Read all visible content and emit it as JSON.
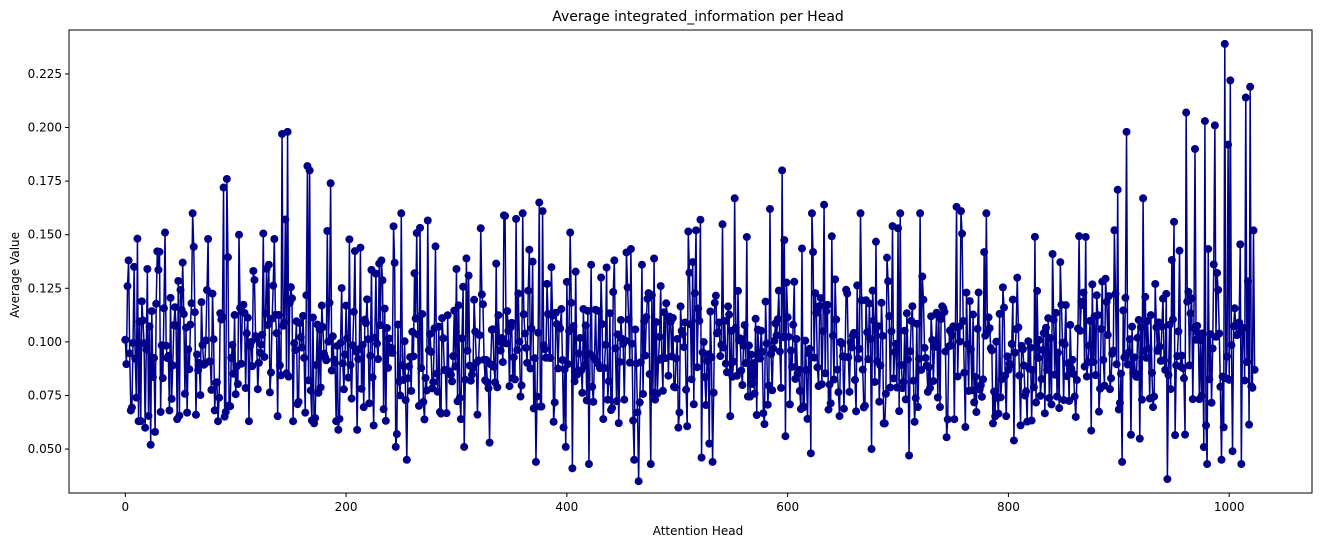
{
  "chart_data": {
    "type": "line",
    "title": "Average integrated_information per Head",
    "xlabel": "Attention Head",
    "ylabel": "Average Value",
    "xlim": [
      -51,
      1075
    ],
    "ylim": [
      0.0295,
      0.2455
    ],
    "xticks": [
      0,
      200,
      400,
      600,
      800,
      1000
    ],
    "xtick_labels": [
      "0",
      "200",
      "400",
      "600",
      "800",
      "1000"
    ],
    "yticks": [
      0.05,
      0.075,
      0.1,
      0.125,
      0.15,
      0.175,
      0.2,
      0.225
    ],
    "ytick_labels": [
      "0.050",
      "0.075",
      "0.100",
      "0.125",
      "0.150",
      "0.175",
      "0.200",
      "0.225"
    ],
    "grid": false,
    "legend": "none",
    "series": [
      {
        "color": "#00008b",
        "marker": "circle",
        "n_points": 1024,
        "key_points": [
          {
            "x": 0,
            "y": 0.101
          },
          {
            "x": 2,
            "y": 0.126
          },
          {
            "x": 3,
            "y": 0.138
          },
          {
            "x": 5,
            "y": 0.068
          },
          {
            "x": 8,
            "y": 0.135
          },
          {
            "x": 10,
            "y": 0.074
          },
          {
            "x": 12,
            "y": 0.063
          },
          {
            "x": 16,
            "y": 0.11
          },
          {
            "x": 20,
            "y": 0.134
          },
          {
            "x": 23,
            "y": 0.052
          },
          {
            "x": 27,
            "y": 0.058
          },
          {
            "x": 31,
            "y": 0.142
          },
          {
            "x": 36,
            "y": 0.151
          },
          {
            "x": 40,
            "y": 0.068
          },
          {
            "x": 52,
            "y": 0.137
          },
          {
            "x": 56,
            "y": 0.067
          },
          {
            "x": 61,
            "y": 0.16
          },
          {
            "x": 64,
            "y": 0.066
          },
          {
            "x": 75,
            "y": 0.148
          },
          {
            "x": 84,
            "y": 0.063
          },
          {
            "x": 89,
            "y": 0.172
          },
          {
            "x": 92,
            "y": 0.176
          },
          {
            "x": 95,
            "y": 0.07
          },
          {
            "x": 103,
            "y": 0.15
          },
          {
            "x": 112,
            "y": 0.063
          },
          {
            "x": 130,
            "y": 0.136
          },
          {
            "x": 135,
            "y": 0.148
          },
          {
            "x": 140,
            "y": 0.089
          },
          {
            "x": 142,
            "y": 0.197
          },
          {
            "x": 147,
            "y": 0.198
          },
          {
            "x": 152,
            "y": 0.063
          },
          {
            "x": 163,
            "y": 0.067
          },
          {
            "x": 165,
            "y": 0.182
          },
          {
            "x": 167,
            "y": 0.18
          },
          {
            "x": 171,
            "y": 0.062
          },
          {
            "x": 186,
            "y": 0.174
          },
          {
            "x": 193,
            "y": 0.059
          },
          {
            "x": 213,
            "y": 0.144
          },
          {
            "x": 225,
            "y": 0.061
          },
          {
            "x": 232,
            "y": 0.138
          },
          {
            "x": 245,
            "y": 0.051
          },
          {
            "x": 255,
            "y": 0.045
          },
          {
            "x": 262,
            "y": 0.132
          },
          {
            "x": 300,
            "y": 0.134
          },
          {
            "x": 307,
            "y": 0.051
          },
          {
            "x": 322,
            "y": 0.153
          },
          {
            "x": 330,
            "y": 0.053
          },
          {
            "x": 343,
            "y": 0.159
          },
          {
            "x": 366,
            "y": 0.143
          },
          {
            "x": 372,
            "y": 0.044
          },
          {
            "x": 375,
            "y": 0.165
          },
          {
            "x": 378,
            "y": 0.161
          },
          {
            "x": 399,
            "y": 0.051
          },
          {
            "x": 403,
            "y": 0.151
          },
          {
            "x": 405,
            "y": 0.041
          },
          {
            "x": 420,
            "y": 0.043
          },
          {
            "x": 443,
            "y": 0.138
          },
          {
            "x": 461,
            "y": 0.045
          },
          {
            "x": 465,
            "y": 0.035
          },
          {
            "x": 468,
            "y": 0.136
          },
          {
            "x": 476,
            "y": 0.043
          },
          {
            "x": 490,
            "y": 0.118
          },
          {
            "x": 521,
            "y": 0.157
          },
          {
            "x": 522,
            "y": 0.046
          },
          {
            "x": 532,
            "y": 0.044
          },
          {
            "x": 552,
            "y": 0.167
          },
          {
            "x": 584,
            "y": 0.162
          },
          {
            "x": 595,
            "y": 0.18
          },
          {
            "x": 598,
            "y": 0.056
          },
          {
            "x": 621,
            "y": 0.048
          },
          {
            "x": 633,
            "y": 0.164
          },
          {
            "x": 666,
            "y": 0.16
          },
          {
            "x": 676,
            "y": 0.05
          },
          {
            "x": 695,
            "y": 0.154
          },
          {
            "x": 710,
            "y": 0.047
          },
          {
            "x": 753,
            "y": 0.163
          },
          {
            "x": 757,
            "y": 0.161
          },
          {
            "x": 780,
            "y": 0.16
          },
          {
            "x": 805,
            "y": 0.054
          },
          {
            "x": 824,
            "y": 0.149
          },
          {
            "x": 840,
            "y": 0.141
          },
          {
            "x": 899,
            "y": 0.171
          },
          {
            "x": 903,
            "y": 0.044
          },
          {
            "x": 907,
            "y": 0.198
          },
          {
            "x": 922,
            "y": 0.167
          },
          {
            "x": 944,
            "y": 0.036
          },
          {
            "x": 950,
            "y": 0.156
          },
          {
            "x": 961,
            "y": 0.207
          },
          {
            "x": 969,
            "y": 0.19
          },
          {
            "x": 978,
            "y": 0.203
          },
          {
            "x": 980,
            "y": 0.043
          },
          {
            "x": 987,
            "y": 0.201
          },
          {
            "x": 993,
            "y": 0.045
          },
          {
            "x": 996,
            "y": 0.239
          },
          {
            "x": 999,
            "y": 0.192
          },
          {
            "x": 1001,
            "y": 0.222
          },
          {
            "x": 1003,
            "y": 0.049
          },
          {
            "x": 1011,
            "y": 0.043
          },
          {
            "x": 1015,
            "y": 0.214
          },
          {
            "x": 1019,
            "y": 0.219
          },
          {
            "x": 1022,
            "y": 0.152
          },
          {
            "x": 1023,
            "y": 0.087
          }
        ]
      }
    ]
  }
}
